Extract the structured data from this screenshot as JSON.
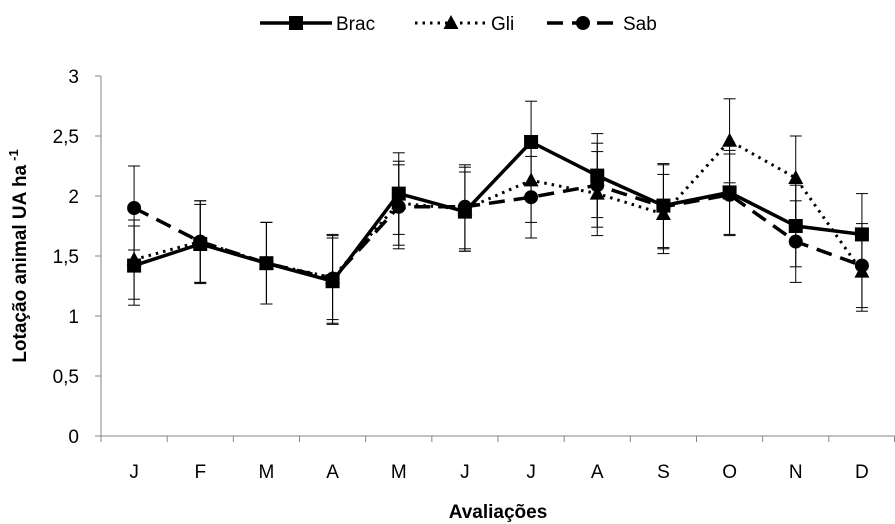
{
  "chart_data": {
    "type": "line",
    "title": "",
    "xlabel": "Avaliações",
    "ylabel": "Lotação animal UA ha",
    "ylabel_superscript": "-1",
    "categories": [
      "J",
      "F",
      "M",
      "A",
      "M",
      "J",
      "J",
      "A",
      "S",
      "O",
      "N",
      "D"
    ],
    "ylim": [
      0,
      3
    ],
    "yticks": [
      "0",
      "0,5",
      "1",
      "1,5",
      "2",
      "2,5",
      "3"
    ],
    "ytick_values": [
      0,
      0.5,
      1,
      1.5,
      2,
      2.5,
      3
    ],
    "grid": false,
    "legend_position": "top",
    "series": [
      {
        "name": "Brac",
        "line_style": "solid",
        "marker": "square",
        "values": [
          1.42,
          1.6,
          1.44,
          1.29,
          2.02,
          1.87,
          2.45,
          2.17,
          1.92,
          2.03,
          1.75,
          1.68
        ],
        "errors": [
          0.33,
          0.33,
          0.34,
          0.36,
          0.34,
          0.33,
          0.34,
          0.35,
          0.35,
          0.35,
          0.34,
          0.34
        ]
      },
      {
        "name": "Gli",
        "line_style": "dotted",
        "marker": "triangle",
        "values": [
          1.47,
          1.62,
          1.44,
          1.32,
          1.94,
          1.89,
          2.13,
          2.02,
          1.85,
          2.46,
          2.15,
          1.37
        ],
        "errors": [
          0.33,
          0.34,
          0.34,
          0.35,
          0.35,
          0.35,
          0.35,
          0.35,
          0.33,
          0.35,
          0.35,
          0.33
        ]
      },
      {
        "name": "Sab",
        "line_style": "dashed",
        "marker": "circle",
        "values": [
          1.9,
          1.62,
          1.44,
          1.31,
          1.91,
          1.91,
          1.99,
          2.09,
          1.91,
          2.01,
          1.62,
          1.42
        ],
        "errors": [
          0.35,
          0.34,
          0.34,
          0.37,
          0.35,
          0.35,
          0.34,
          0.35,
          0.35,
          0.34,
          0.34,
          0.35
        ]
      }
    ],
    "colors": {
      "line": "#000000",
      "axis": "#868686"
    }
  }
}
